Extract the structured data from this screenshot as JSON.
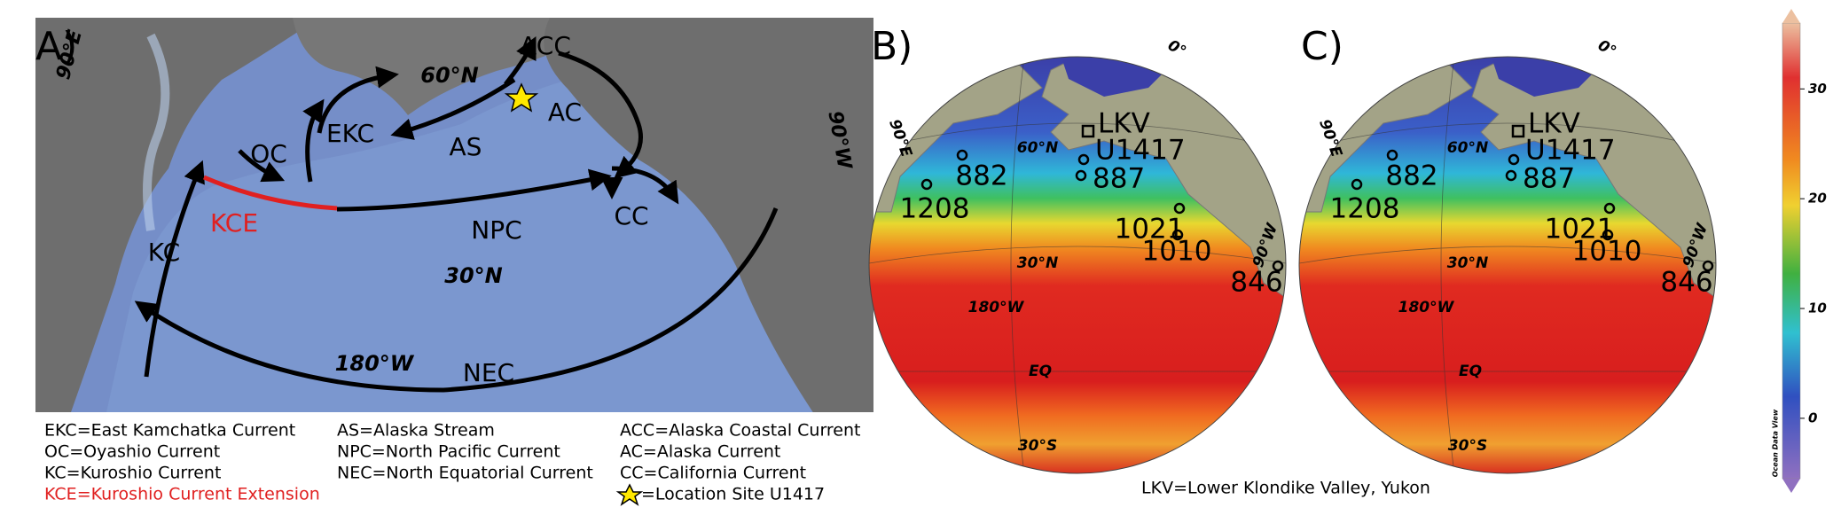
{
  "panel_a": {
    "label": "A)",
    "labels": [
      "90°E",
      "ACC",
      "60°N",
      "AC",
      "EKC",
      "AS",
      "OC",
      "KCE",
      "NPC",
      "CC",
      "KC",
      "30°N",
      "180°W",
      "NEC",
      "90°W"
    ]
  },
  "legend": {
    "columns": [
      [
        "EKC=East Kamchatka Current",
        "OC=Oyashio Current",
        "KC=Kuroshio Current",
        "KCE=Kuroshio Current Extension"
      ],
      [
        "AS=Alaska Stream",
        "NPC=North Pacific Current",
        "NEC=North Equatorial Current"
      ],
      [
        "ACC=Alaska Coastal Current",
        "AC=Alaska Current",
        "CC=California Current",
        "=Location Site U1417"
      ]
    ]
  },
  "panel_b": {
    "label": "B)",
    "grid_labels": [
      "0°",
      "90°E",
      "60°N",
      "30°N",
      "180°W",
      "EQ",
      "30°S",
      "90°W"
    ],
    "sites": [
      "LKV",
      "U1417",
      "882",
      "887",
      "1208",
      "1021",
      "1010",
      "846"
    ]
  },
  "panel_c": {
    "label": "C)",
    "grid_labels": [
      "0°",
      "90°E",
      "60°N",
      "30°N",
      "180°W",
      "EQ",
      "30°S",
      "90°W"
    ],
    "sites": [
      "LKV",
      "U1417",
      "882",
      "887",
      "1208",
      "1021",
      "1010",
      "846"
    ]
  },
  "colorbar": {
    "title": "Ocean Data View",
    "ylim": [
      -5.5,
      36
    ],
    "yticks": [
      0,
      10,
      20,
      30
    ]
  },
  "footnote": "LKV=Lower Klondike Valley, Yukon"
}
